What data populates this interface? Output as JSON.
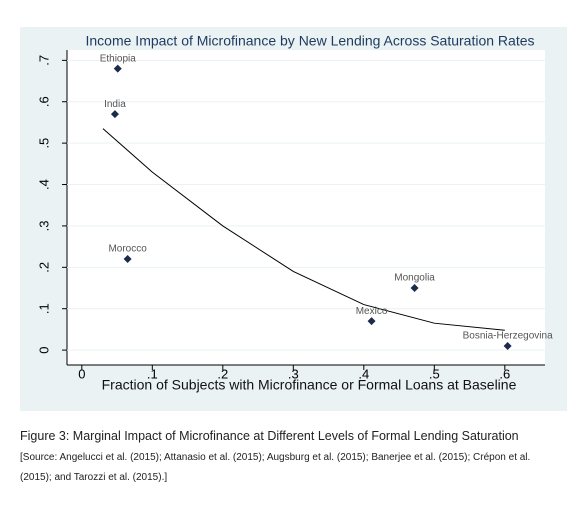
{
  "chart_data": {
    "type": "scatter",
    "title": "Income Impact of Microfinance by New Lending Across Saturation Rates",
    "x_label": "Fraction of Subjects with Microfinance or Formal Loans at Baseline",
    "points": {
      "labels": [
        "Ethiopia",
        "India",
        "Morocco",
        "Mongolia",
        "Mexico",
        "Bosnia-Herzegovina"
      ],
      "x": [
        0.051,
        0.047,
        0.065,
        0.472,
        0.411,
        0.604
      ],
      "values": [
        0.68,
        0.57,
        0.22,
        0.15,
        0.07,
        0.01
      ],
      "color": "#1c2b4a"
    },
    "fit": {
      "x": [
        0.03,
        0.1,
        0.2,
        0.3,
        0.4,
        0.5,
        0.6
      ],
      "values": [
        0.535,
        0.43,
        0.3,
        0.19,
        0.11,
        0.065,
        0.048
      ],
      "color": "#000000"
    },
    "xlim": [
      -0.021,
      0.657
    ],
    "ylim": [
      -0.036,
      0.725
    ],
    "xticks": [
      0,
      {
        "value": 0.1,
        "label": ".1"
      },
      {
        "value": 0.2,
        "label": ".2"
      },
      {
        "value": 0.3,
        "label": ".3"
      },
      {
        "value": 0.4,
        "label": ".4"
      },
      {
        "value": 0.5,
        "label": ".5"
      },
      {
        "value": 0.6,
        "label": ".6"
      }
    ],
    "yticks": [
      0,
      {
        "value": 0.1,
        "label": ".1"
      },
      {
        "value": 0.2,
        "label": ".2"
      },
      {
        "value": 0.3,
        "label": ".3"
      },
      {
        "value": 0.4,
        "label": ".4"
      },
      {
        "value": 0.5,
        "label": ".5"
      },
      {
        "value": 0.6,
        "label": ".6"
      },
      {
        "value": 0.7,
        "label": ".7"
      }
    ],
    "grid": true
  },
  "caption": {
    "title": "Figure 3: Marginal Impact of Microfinance at Different Levels of Formal Lending Saturation",
    "source": [
      "[Source: Angelucci et al. (2015); Attanasio et al. (2015); Augsburg et al. (2015); Banerjee et al. (2015); Crépon et al.",
      "(2015); and Tarozzi et al. (2015).]"
    ]
  }
}
